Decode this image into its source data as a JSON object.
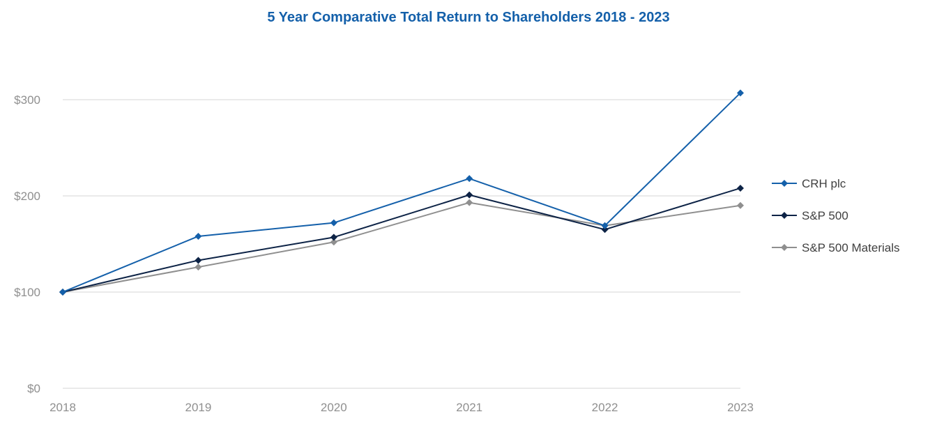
{
  "chart_data": {
    "type": "line",
    "title": "5 Year Comparative Total Return to Shareholders 2018 - 2023",
    "xlabel": "",
    "ylabel": "",
    "categories": [
      "2018",
      "2019",
      "2020",
      "2021",
      "2022",
      "2023"
    ],
    "ylim": [
      0,
      300
    ],
    "yticks": [
      0,
      100,
      200,
      300
    ],
    "ytick_labels": [
      "$0",
      "$100",
      "$200",
      "$300"
    ],
    "grid": true,
    "legend_position": "right",
    "series": [
      {
        "name": "CRH plc",
        "color": "#1460aa",
        "values": [
          100,
          158,
          172,
          218,
          169,
          307
        ]
      },
      {
        "name": "S&P 500",
        "color": "#0d2346",
        "values": [
          100,
          133,
          157,
          201,
          165,
          208
        ]
      },
      {
        "name": "S&P 500 Materials",
        "color": "#8f8f8f",
        "values": [
          100,
          126,
          152,
          193,
          169,
          190
        ]
      }
    ]
  }
}
